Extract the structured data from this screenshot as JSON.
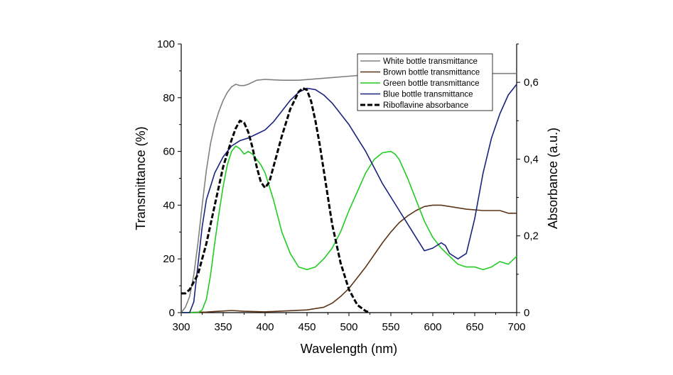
{
  "chart_data": {
    "type": "line",
    "xlabel": "Wavelength (nm)",
    "ylabel_left": "Transmittance (%)",
    "ylabel_right": "Absorbance (a.u.)",
    "xlim": [
      300,
      700
    ],
    "ylim_left": [
      0,
      100
    ],
    "ylim_right": [
      0,
      0.7
    ],
    "x_ticks": [
      300,
      350,
      400,
      450,
      500,
      550,
      600,
      650,
      700
    ],
    "y_ticks_left": [
      0,
      20,
      40,
      60,
      80,
      100
    ],
    "y_ticks_right": [
      {
        "value": 0,
        "label": "0"
      },
      {
        "value": 0.2,
        "label": "0,2"
      },
      {
        "value": 0.4,
        "label": "0,4"
      },
      {
        "value": 0.6,
        "label": "0,6"
      }
    ],
    "grid": false,
    "legend_position": "top-right",
    "series": [
      {
        "name": "White bottle transmittance",
        "color": "#808080",
        "axis": "left",
        "dash": "solid",
        "x": [
          300,
          305,
          310,
          315,
          320,
          325,
          330,
          335,
          340,
          345,
          350,
          355,
          360,
          365,
          370,
          375,
          380,
          390,
          400,
          420,
          440,
          460,
          480,
          500,
          520,
          550,
          600,
          650,
          700
        ],
        "y": [
          0,
          2,
          6,
          14,
          26,
          40,
          53,
          63,
          70,
          75,
          79,
          82,
          84,
          85,
          84.5,
          84.5,
          85,
          86.5,
          86.8,
          86.5,
          86.5,
          87,
          87.5,
          88,
          88.5,
          89,
          89,
          89,
          89
        ]
      },
      {
        "name": "Brown bottle  transmittance",
        "color": "#5c3317",
        "axis": "left",
        "dash": "solid",
        "x": [
          300,
          330,
          345,
          360,
          375,
          400,
          450,
          470,
          480,
          490,
          500,
          510,
          520,
          530,
          540,
          550,
          560,
          570,
          580,
          590,
          600,
          610,
          620,
          640,
          660,
          680,
          690,
          700
        ],
        "y": [
          0,
          0.2,
          0.5,
          0.8,
          0.5,
          0.3,
          1,
          2,
          3.5,
          6,
          9,
          13,
          17,
          21.5,
          26,
          30,
          33.5,
          36,
          38,
          39.5,
          40,
          40,
          39.5,
          38.5,
          38,
          38,
          37,
          37
        ]
      },
      {
        "name": "Green bottle  transmittance",
        "color": "#22cc22",
        "axis": "left",
        "dash": "solid",
        "x": [
          300,
          320,
          325,
          330,
          335,
          340,
          345,
          350,
          355,
          360,
          365,
          370,
          375,
          380,
          385,
          390,
          395,
          400,
          410,
          420,
          430,
          440,
          450,
          460,
          470,
          480,
          490,
          500,
          510,
          520,
          530,
          540,
          550,
          555,
          560,
          570,
          580,
          590,
          600,
          610,
          620,
          630,
          640,
          650,
          660,
          670,
          680,
          690,
          700
        ],
        "y": [
          0,
          0,
          1,
          5,
          14,
          26,
          37,
          47,
          55,
          60,
          62,
          61,
          59,
          60,
          59,
          57,
          55,
          52,
          42,
          30,
          22,
          17,
          16,
          17,
          20,
          24,
          30,
          38,
          45,
          52,
          57,
          59.5,
          60,
          59,
          57,
          50,
          42,
          34,
          28,
          24,
          21,
          18,
          17,
          17,
          16,
          17,
          19,
          18,
          21
        ]
      },
      {
        "name": "Blue bottle  transmittance",
        "color": "#1a237e",
        "axis": "left",
        "dash": "solid",
        "x": [
          300,
          310,
          315,
          320,
          325,
          330,
          340,
          350,
          360,
          370,
          380,
          390,
          400,
          410,
          420,
          430,
          440,
          450,
          460,
          470,
          480,
          490,
          500,
          510,
          520,
          530,
          540,
          550,
          560,
          570,
          580,
          590,
          600,
          610,
          615,
          620,
          630,
          640,
          650,
          660,
          670,
          680,
          690,
          700
        ],
        "y": [
          0,
          0,
          4,
          18,
          32,
          42,
          52,
          58,
          62,
          64,
          65,
          66.5,
          68,
          71,
          75,
          79,
          82,
          83.5,
          83,
          81,
          78,
          74,
          70,
          65,
          60,
          54,
          48,
          43,
          38,
          33,
          28,
          23,
          24,
          26,
          25,
          22,
          20,
          22,
          35,
          52,
          65,
          74,
          81,
          85
        ]
      },
      {
        "name": "Riboflavine absorbance",
        "color": "#000000",
        "axis": "right",
        "dash": "dashed",
        "x": [
          300,
          305,
          310,
          320,
          330,
          340,
          350,
          360,
          365,
          370,
          375,
          380,
          385,
          390,
          395,
          400,
          405,
          410,
          420,
          430,
          440,
          445,
          450,
          455,
          460,
          465,
          470,
          475,
          480,
          490,
          500,
          505,
          510,
          520,
          525
        ],
        "y": [
          0.05,
          0.05,
          0.06,
          0.1,
          0.18,
          0.28,
          0.38,
          0.45,
          0.48,
          0.5,
          0.495,
          0.47,
          0.43,
          0.38,
          0.34,
          0.325,
          0.34,
          0.38,
          0.46,
          0.53,
          0.575,
          0.585,
          0.58,
          0.55,
          0.5,
          0.44,
          0.37,
          0.3,
          0.23,
          0.13,
          0.06,
          0.04,
          0.02,
          0.004,
          0
        ]
      }
    ]
  }
}
